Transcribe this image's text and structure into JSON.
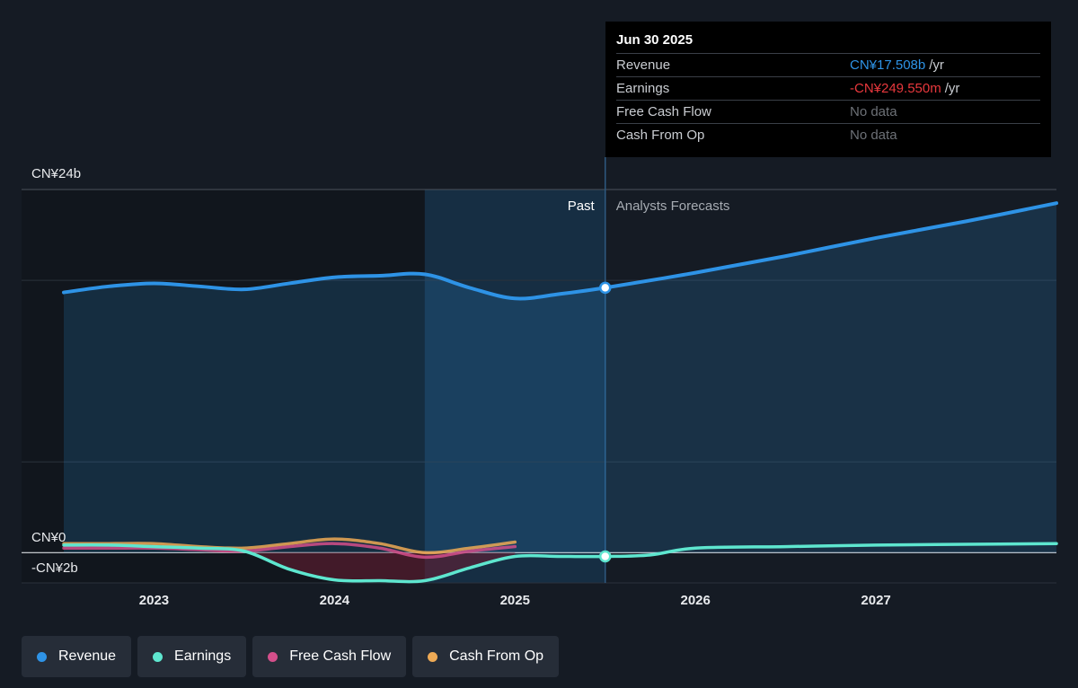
{
  "tooltip": {
    "date": "Jun 30 2025",
    "rows": [
      {
        "label": "Revenue",
        "value": "CN¥17.508b",
        "unit": "/yr",
        "color": "#2e93e6"
      },
      {
        "label": "Earnings",
        "value": "-CN¥249.550m",
        "unit": "/yr",
        "color": "#e8383d"
      },
      {
        "label": "Free Cash Flow",
        "value": "No data",
        "unit": "",
        "color": "#6d7177"
      },
      {
        "label": "Cash From Op",
        "value": "No data",
        "unit": "",
        "color": "#6d7177"
      }
    ]
  },
  "legend": [
    {
      "label": "Revenue",
      "color": "#2e93e6"
    },
    {
      "label": "Earnings",
      "color": "#5ee6cf"
    },
    {
      "label": "Free Cash Flow",
      "color": "#d44f8b"
    },
    {
      "label": "Cash From Op",
      "color": "#eeaa55"
    }
  ],
  "chart_data": {
    "type": "line",
    "y_labels": [
      "CN¥24b",
      "CN¥0",
      "-CN¥2b"
    ],
    "x_ticks": [
      "2023",
      "2024",
      "2025",
      "2026",
      "2027"
    ],
    "past_label": "Past",
    "forecast_label": "Analysts Forecasts",
    "ylim": [
      -2,
      24
    ],
    "xlim": [
      2022.5,
      2028.0
    ],
    "divider_x": 2025.5,
    "grid": true,
    "series": [
      {
        "name": "Revenue",
        "color": "#2e93e6",
        "points": [
          [
            2022.5,
            17.2
          ],
          [
            2022.75,
            17.6
          ],
          [
            2023.0,
            17.8
          ],
          [
            2023.25,
            17.6
          ],
          [
            2023.5,
            17.4
          ],
          [
            2023.75,
            17.8
          ],
          [
            2024.0,
            18.2
          ],
          [
            2024.25,
            18.3
          ],
          [
            2024.5,
            18.4
          ],
          [
            2024.75,
            17.5
          ],
          [
            2025.0,
            16.8
          ],
          [
            2025.25,
            17.1
          ],
          [
            2025.5,
            17.508
          ],
          [
            2026.0,
            18.5
          ],
          [
            2026.5,
            19.6
          ],
          [
            2027.0,
            20.8
          ],
          [
            2027.5,
            21.9
          ],
          [
            2028.0,
            23.1
          ]
        ]
      },
      {
        "name": "Earnings",
        "color": "#5ee6cf",
        "points": [
          [
            2022.5,
            0.5
          ],
          [
            2022.75,
            0.5
          ],
          [
            2023.0,
            0.4
          ],
          [
            2023.25,
            0.3
          ],
          [
            2023.5,
            0.1
          ],
          [
            2023.75,
            -1.1
          ],
          [
            2024.0,
            -1.8
          ],
          [
            2024.25,
            -1.85
          ],
          [
            2024.5,
            -1.85
          ],
          [
            2024.75,
            -1.0
          ],
          [
            2025.0,
            -0.25
          ],
          [
            2025.25,
            -0.25
          ],
          [
            2025.5,
            -0.25
          ],
          [
            2025.75,
            -0.15
          ],
          [
            2026.0,
            0.3
          ],
          [
            2026.5,
            0.4
          ],
          [
            2027.0,
            0.5
          ],
          [
            2027.5,
            0.55
          ],
          [
            2028.0,
            0.6
          ]
        ]
      },
      {
        "name": "Free Cash Flow",
        "color": "#d44f8b",
        "points": [
          [
            2022.5,
            0.3
          ],
          [
            2022.75,
            0.3
          ],
          [
            2023.0,
            0.3
          ],
          [
            2023.25,
            0.2
          ],
          [
            2023.5,
            0.1
          ],
          [
            2023.75,
            0.4
          ],
          [
            2024.0,
            0.6
          ],
          [
            2024.25,
            0.3
          ],
          [
            2024.5,
            -0.3
          ],
          [
            2024.75,
            0.1
          ],
          [
            2025.0,
            0.4
          ]
        ]
      },
      {
        "name": "Cash From Op",
        "color": "#eeaa55",
        "points": [
          [
            2022.5,
            0.6
          ],
          [
            2022.75,
            0.6
          ],
          [
            2023.0,
            0.6
          ],
          [
            2023.25,
            0.4
          ],
          [
            2023.5,
            0.3
          ],
          [
            2023.75,
            0.6
          ],
          [
            2024.0,
            0.9
          ],
          [
            2024.25,
            0.6
          ],
          [
            2024.5,
            0.0
          ],
          [
            2024.75,
            0.3
          ],
          [
            2025.0,
            0.7
          ]
        ]
      }
    ],
    "highlight_points": [
      {
        "series": "Revenue",
        "x": 2025.5,
        "y": 17.508
      },
      {
        "series": "Earnings",
        "x": 2025.5,
        "y": -0.25
      }
    ]
  }
}
